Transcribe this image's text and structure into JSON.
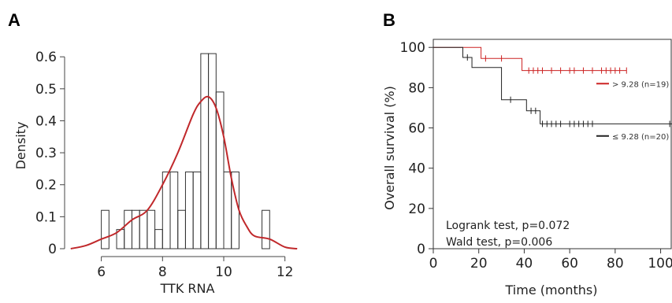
{
  "chart_data": [
    {
      "panel": "A",
      "type": "bar",
      "subtype": "histogram-with-density",
      "xlabel": "TTK RNA",
      "ylabel": "Density",
      "xlim": [
        4.8,
        12.6
      ],
      "ylim": [
        0,
        0.63
      ],
      "xticks": [
        "6",
        "8",
        "10",
        "12"
      ],
      "yticks": [
        "0",
        "0.1",
        "0.2",
        "0.3",
        "0.4",
        "0.5",
        "0.6"
      ],
      "bin_width": 0.25,
      "bins": [
        {
          "x0": 6.0,
          "value": 0.12
        },
        {
          "x0": 6.25,
          "value": 0.0
        },
        {
          "x0": 6.5,
          "value": 0.06
        },
        {
          "x0": 6.75,
          "value": 0.12
        },
        {
          "x0": 7.0,
          "value": 0.12
        },
        {
          "x0": 7.25,
          "value": 0.12
        },
        {
          "x0": 7.5,
          "value": 0.12
        },
        {
          "x0": 7.75,
          "value": 0.06
        },
        {
          "x0": 8.0,
          "value": 0.24
        },
        {
          "x0": 8.25,
          "value": 0.24
        },
        {
          "x0": 8.5,
          "value": 0.12
        },
        {
          "x0": 8.75,
          "value": 0.24
        },
        {
          "x0": 9.0,
          "value": 0.24
        },
        {
          "x0": 9.25,
          "value": 0.61
        },
        {
          "x0": 9.5,
          "value": 0.61
        },
        {
          "x0": 9.75,
          "value": 0.49
        },
        {
          "x0": 10.0,
          "value": 0.24
        },
        {
          "x0": 10.25,
          "value": 0.24
        },
        {
          "x0": 10.5,
          "value": 0.0
        },
        {
          "x0": 10.75,
          "value": 0.0
        },
        {
          "x0": 11.0,
          "value": 0.0
        },
        {
          "x0": 11.25,
          "value": 0.12
        }
      ],
      "density_curve": {
        "color": "#c0282b",
        "x": [
          5.0,
          5.5,
          6.0,
          6.5,
          7.0,
          7.5,
          8.0,
          8.5,
          9.0,
          9.25,
          9.5,
          9.75,
          10.0,
          10.25,
          10.5,
          10.75,
          11.0,
          11.5,
          12.0,
          12.4
        ],
        "y": [
          0.0,
          0.01,
          0.03,
          0.05,
          0.09,
          0.12,
          0.2,
          0.3,
          0.42,
          0.46,
          0.475,
          0.44,
          0.35,
          0.22,
          0.12,
          0.07,
          0.04,
          0.03,
          0.005,
          0.0
        ]
      }
    },
    {
      "panel": "B",
      "type": "line",
      "subtype": "kaplan-meier",
      "xlabel": "Time (months)",
      "ylabel": "Overall survival (%)",
      "xlim": [
        0,
        105
      ],
      "ylim": [
        0,
        104
      ],
      "xticks": [
        "0",
        "20",
        "40",
        "60",
        "80",
        "100"
      ],
      "yticks": [
        "0",
        "20",
        "40",
        "60",
        "80",
        "100"
      ],
      "series": [
        {
          "name": "> 9.28 (n=19)",
          "color": "#cc2222",
          "steps": [
            [
              0,
              100
            ],
            [
              21,
              100
            ],
            [
              21,
              94.5
            ],
            [
              39,
              94.5
            ],
            [
              39,
              88.5
            ],
            [
              85,
              88.5
            ]
          ],
          "censor_times": [
            23,
            30,
            42,
            44,
            46,
            48,
            52,
            56,
            60,
            62,
            66,
            70,
            74,
            76,
            78,
            80,
            82,
            85
          ]
        },
        {
          "name": "≤ 9.28 (n=20)",
          "color": "#222222",
          "steps": [
            [
              0,
              100
            ],
            [
              13,
              100
            ],
            [
              13,
              95
            ],
            [
              17,
              95
            ],
            [
              17,
              90
            ],
            [
              30,
              90
            ],
            [
              30,
              74
            ],
            [
              41,
              74
            ],
            [
              41,
              68.5
            ],
            [
              47,
              68.5
            ],
            [
              47,
              62
            ],
            [
              105,
              62
            ]
          ],
          "censor_times": [
            15,
            34,
            43,
            45,
            48,
            50,
            52,
            54,
            56,
            60,
            62,
            64,
            66,
            68,
            70,
            104
          ]
        }
      ],
      "annotations": [
        "Logrank test, p=0.072",
        "Wald test, p=0.006"
      ]
    }
  ]
}
